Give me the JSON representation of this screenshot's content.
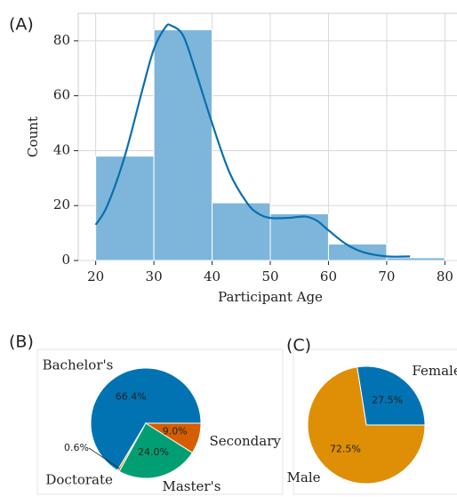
{
  "chart_data": [
    {
      "type": "histogram",
      "panel": "(A)",
      "xlabel": "Participant Age",
      "ylabel": "Count",
      "bins": [
        20,
        30,
        40,
        50,
        60,
        70,
        80
      ],
      "values": [
        38,
        84,
        21,
        17,
        6,
        1
      ],
      "color": "#7eb6db",
      "kde": {
        "color": "#0a6fad",
        "x": [
          20,
          22,
          25,
          28,
          30,
          32,
          33,
          35,
          37,
          40,
          43,
          46,
          48,
          50,
          53,
          56,
          58,
          60,
          63,
          66,
          70,
          74
        ],
        "values": [
          13,
          20,
          38,
          62,
          77,
          85,
          85.5,
          82,
          70,
          50,
          32,
          21,
          17,
          15.5,
          15.5,
          16,
          14.5,
          11,
          6,
          3,
          1.5,
          1.5
        ]
      },
      "xlim": [
        17,
        83
      ],
      "ylim": [
        0,
        90
      ],
      "xticks": [
        20,
        30,
        40,
        50,
        60,
        70,
        80
      ],
      "yticks": [
        0,
        20,
        40,
        60,
        80
      ],
      "grid": true
    },
    {
      "type": "pie",
      "panel": "(B)",
      "categories": [
        "Bachelor's",
        "Doctorate",
        "Master's",
        "Secondary"
      ],
      "values": [
        66.4,
        0.6,
        24.0,
        9.0
      ],
      "value_labels": [
        "66.4%",
        "0.6%",
        "24.0%",
        "9.0%"
      ],
      "colors": [
        "#0173b2",
        "#de8f05",
        "#029e73",
        "#d55e00"
      ]
    },
    {
      "type": "pie",
      "panel": "(C)",
      "categories": [
        "Female",
        "Male"
      ],
      "values": [
        27.5,
        72.5
      ],
      "value_labels": [
        "27.5%",
        "72.5%"
      ],
      "colors": [
        "#0173b2",
        "#de8f05"
      ]
    }
  ]
}
